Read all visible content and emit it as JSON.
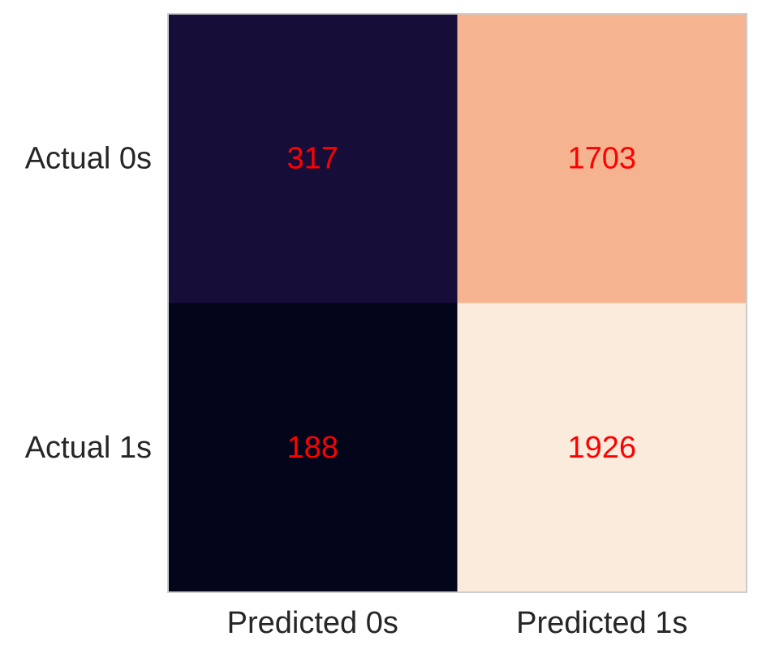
{
  "chart_data": {
    "type": "heatmap",
    "title": "",
    "xlabel": "",
    "ylabel": "",
    "x_categories": [
      "Predicted 0s",
      "Predicted 1s"
    ],
    "y_categories": [
      "Actual 0s",
      "Actual 1s"
    ],
    "values": [
      [
        317,
        1703
      ],
      [
        188,
        1926
      ]
    ],
    "annotation_color": "#ff0000",
    "colormap": "rocket",
    "frame_color": "#cccccc",
    "grid": false,
    "colorbar": false
  }
}
